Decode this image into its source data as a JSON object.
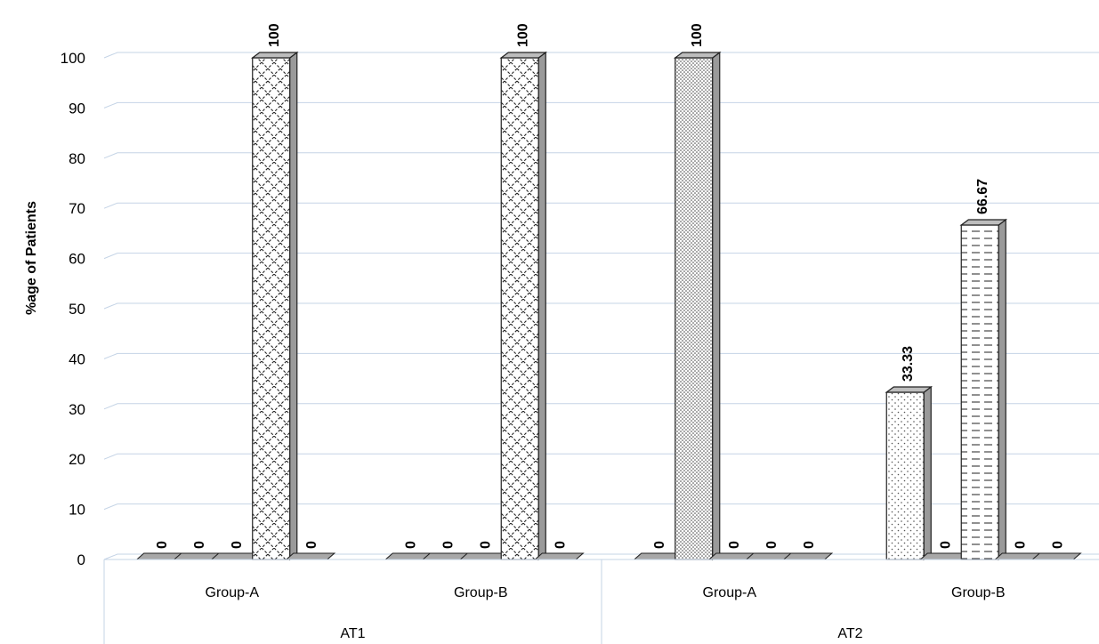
{
  "chart_data": {
    "type": "bar",
    "ylabel": "%age of  Patients",
    "ylim": [
      0,
      100
    ],
    "yticks": [
      "0",
      "10",
      "20",
      "30",
      "40",
      "50",
      "60",
      "70",
      "80",
      "90",
      "100"
    ],
    "grid": true,
    "groups": [
      {
        "label": "AT1",
        "categories": [
          "Group-A",
          "Group-B"
        ]
      },
      {
        "label": "AT2",
        "categories": [
          "Group-A",
          "Group-B"
        ]
      }
    ],
    "categories": [
      "Group-A",
      "Group-B",
      "Group-A",
      "Group-B"
    ],
    "series": [
      {
        "values": [
          0,
          0,
          0,
          33.33
        ],
        "labels": [
          "0",
          "0",
          "0",
          "33.33"
        ],
        "pattern": "dots"
      },
      {
        "values": [
          0,
          0,
          100,
          0
        ],
        "labels": [
          "0",
          "0",
          "100",
          "0"
        ],
        "pattern": "dense-dots"
      },
      {
        "values": [
          0,
          0,
          0,
          66.67
        ],
        "labels": [
          "0",
          "0",
          "0",
          "66.67"
        ],
        "pattern": "dashes"
      },
      {
        "values": [
          100,
          100,
          0,
          0
        ],
        "labels": [
          "100",
          "100",
          "0",
          "0"
        ],
        "pattern": "crosshatch"
      },
      {
        "values": [
          0,
          0,
          0,
          0
        ],
        "labels": [
          "0",
          "0",
          "0",
          "0"
        ],
        "pattern": "diagonal"
      }
    ]
  }
}
